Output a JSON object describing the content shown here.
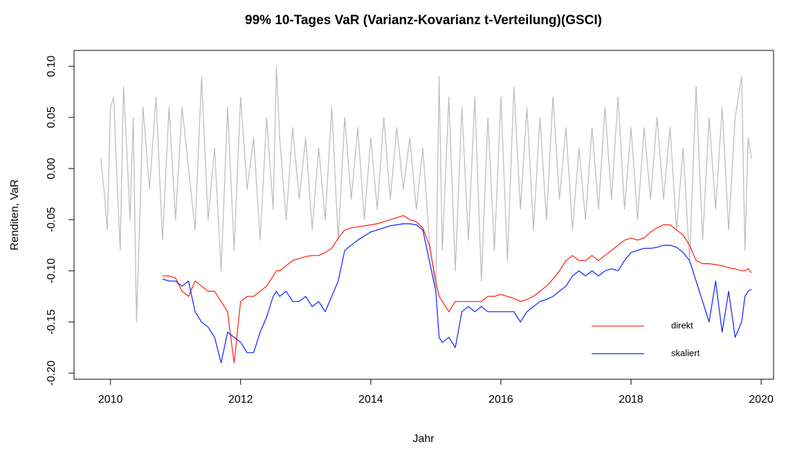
{
  "chart_data": {
    "type": "line",
    "title": "99% 10-Tages VaR (Varianz-Kovarianz t-Verteilung)(GSCI)",
    "x_label": "Jahr",
    "y_label": "Renditen, VaR",
    "xlim": [
      2009.44,
      2020.19
    ],
    "ylim": [
      -0.206,
      0.1155
    ],
    "xticks": [
      2010,
      2012,
      2014,
      2016,
      2018,
      2020
    ],
    "yticks": [
      {
        "value": -0.2,
        "label": "-0.20"
      },
      {
        "value": -0.15,
        "label": "-0.15"
      },
      {
        "value": -0.1,
        "label": "-0.10"
      },
      {
        "value": -0.05,
        "label": "-0.05"
      },
      {
        "value": 0,
        "label": "0.00"
      },
      {
        "value": 0.05,
        "label": "0.05"
      },
      {
        "value": 0.1,
        "label": "0.10"
      }
    ],
    "legend": "bottom right",
    "x": [
      2009.85,
      2009.9,
      2009.95,
      2010.0,
      2010.05,
      2010.1,
      2010.15,
      2010.2,
      2010.25,
      2010.3,
      2010.35,
      2010.4,
      2010.45,
      2010.5,
      2010.6,
      2010.7,
      2010.8,
      2010.9,
      2011.0,
      2011.1,
      2011.2,
      2011.3,
      2011.4,
      2011.5,
      2011.6,
      2011.7,
      2011.8,
      2011.9,
      2012.0,
      2012.1,
      2012.2,
      2012.3,
      2012.4,
      2012.5,
      2012.55,
      2012.6,
      2012.7,
      2012.8,
      2012.9,
      2013.0,
      2013.1,
      2013.2,
      2013.3,
      2013.4,
      2013.5,
      2013.6,
      2013.7,
      2013.8,
      2013.9,
      2014.0,
      2014.1,
      2014.2,
      2014.3,
      2014.4,
      2014.5,
      2014.6,
      2014.7,
      2014.8,
      2014.9,
      2015.0,
      2015.05,
      2015.1,
      2015.2,
      2015.3,
      2015.4,
      2015.5,
      2015.6,
      2015.7,
      2015.8,
      2015.9,
      2016.0,
      2016.1,
      2016.2,
      2016.3,
      2016.4,
      2016.5,
      2016.6,
      2016.7,
      2016.8,
      2016.9,
      2017.0,
      2017.1,
      2017.2,
      2017.3,
      2017.4,
      2017.5,
      2017.6,
      2017.7,
      2017.8,
      2017.9,
      2018.0,
      2018.1,
      2018.2,
      2018.3,
      2018.4,
      2018.5,
      2018.6,
      2018.7,
      2018.8,
      2018.9,
      2019.0,
      2019.1,
      2019.2,
      2019.3,
      2019.4,
      2019.5,
      2019.6,
      2019.7,
      2019.75,
      2019.8,
      2019.85
    ],
    "series": [
      {
        "color": "#bebebe",
        "values": [
          0.01,
          -0.02,
          -0.06,
          0.06,
          0.07,
          -0.01,
          -0.08,
          0.08,
          0.02,
          -0.05,
          0.05,
          -0.15,
          -0.05,
          0.06,
          -0.02,
          0.07,
          -0.07,
          0.06,
          -0.05,
          0.06,
          0.0,
          -0.06,
          0.09,
          -0.05,
          0.02,
          -0.1,
          0.06,
          -0.08,
          0.07,
          -0.02,
          0.03,
          -0.07,
          0.05,
          -0.04,
          0.1,
          0.03,
          -0.05,
          0.04,
          -0.03,
          0.03,
          -0.06,
          0.02,
          -0.05,
          0.06,
          -0.07,
          0.05,
          -0.03,
          0.04,
          -0.05,
          0.03,
          -0.04,
          0.05,
          -0.03,
          0.04,
          -0.02,
          0.03,
          -0.04,
          0.02,
          -0.07,
          -0.12,
          0.09,
          -0.08,
          0.07,
          -0.1,
          0.06,
          -0.07,
          0.07,
          -0.11,
          0.05,
          -0.08,
          0.07,
          -0.09,
          0.08,
          -0.04,
          0.06,
          -0.06,
          0.05,
          -0.05,
          0.07,
          -0.03,
          0.04,
          -0.06,
          0.02,
          -0.05,
          0.04,
          -0.04,
          0.06,
          -0.03,
          0.07,
          -0.04,
          0.04,
          -0.05,
          0.04,
          -0.03,
          0.05,
          -0.03,
          0.04,
          -0.06,
          0.02,
          -0.09,
          0.08,
          -0.07,
          0.05,
          -0.04,
          0.06,
          -0.06,
          0.05,
          0.09,
          -0.08,
          0.03,
          0.01
        ]
      },
      {
        "name": "direkt",
        "color": "#ff2a1a",
        "values": [
          null,
          null,
          null,
          null,
          null,
          null,
          null,
          null,
          null,
          null,
          null,
          null,
          null,
          null,
          null,
          null,
          -0.105,
          -0.105,
          -0.107,
          -0.12,
          -0.125,
          -0.11,
          -0.115,
          -0.12,
          -0.12,
          -0.13,
          -0.14,
          -0.19,
          -0.13,
          -0.125,
          -0.125,
          -0.12,
          -0.115,
          -0.105,
          -0.1,
          -0.1,
          -0.095,
          -0.09,
          -0.088,
          -0.086,
          -0.085,
          -0.085,
          -0.082,
          -0.078,
          -0.068,
          -0.06,
          -0.058,
          -0.057,
          -0.056,
          -0.055,
          -0.054,
          -0.052,
          -0.05,
          -0.048,
          -0.046,
          -0.05,
          -0.052,
          -0.058,
          -0.075,
          -0.11,
          -0.125,
          -0.13,
          -0.14,
          -0.13,
          -0.13,
          -0.13,
          -0.13,
          -0.13,
          -0.125,
          -0.125,
          -0.123,
          -0.125,
          -0.127,
          -0.13,
          -0.128,
          -0.125,
          -0.12,
          -0.115,
          -0.108,
          -0.1,
          -0.09,
          -0.085,
          -0.09,
          -0.09,
          -0.085,
          -0.09,
          -0.085,
          -0.08,
          -0.075,
          -0.07,
          -0.068,
          -0.07,
          -0.068,
          -0.062,
          -0.058,
          -0.055,
          -0.055,
          -0.06,
          -0.065,
          -0.075,
          -0.09,
          -0.093,
          -0.093,
          -0.094,
          -0.095,
          -0.097,
          -0.098,
          -0.1,
          -0.1,
          -0.098,
          -0.102
        ]
      },
      {
        "name": "skaliert",
        "color": "#1a2cff",
        "values": [
          null,
          null,
          null,
          null,
          null,
          null,
          null,
          null,
          null,
          null,
          null,
          null,
          null,
          null,
          null,
          null,
          -0.108,
          -0.11,
          -0.11,
          -0.115,
          -0.11,
          -0.14,
          -0.15,
          -0.155,
          -0.165,
          -0.19,
          -0.16,
          -0.165,
          -0.17,
          -0.18,
          -0.18,
          -0.16,
          -0.145,
          -0.125,
          -0.12,
          -0.125,
          -0.12,
          -0.13,
          -0.13,
          -0.125,
          -0.135,
          -0.13,
          -0.14,
          -0.125,
          -0.11,
          -0.08,
          -0.075,
          -0.07,
          -0.066,
          -0.062,
          -0.06,
          -0.058,
          -0.056,
          -0.055,
          -0.054,
          -0.054,
          -0.055,
          -0.06,
          -0.09,
          -0.12,
          -0.165,
          -0.17,
          -0.165,
          -0.175,
          -0.14,
          -0.135,
          -0.14,
          -0.135,
          -0.14,
          -0.14,
          -0.14,
          -0.14,
          -0.14,
          -0.15,
          -0.14,
          -0.135,
          -0.13,
          -0.128,
          -0.125,
          -0.12,
          -0.115,
          -0.105,
          -0.1,
          -0.105,
          -0.1,
          -0.105,
          -0.1,
          -0.098,
          -0.1,
          -0.09,
          -0.082,
          -0.08,
          -0.078,
          -0.078,
          -0.077,
          -0.075,
          -0.075,
          -0.077,
          -0.082,
          -0.09,
          -0.11,
          -0.13,
          -0.15,
          -0.11,
          -0.16,
          -0.12,
          -0.165,
          -0.15,
          -0.125,
          -0.12,
          -0.118
        ]
      }
    ]
  }
}
